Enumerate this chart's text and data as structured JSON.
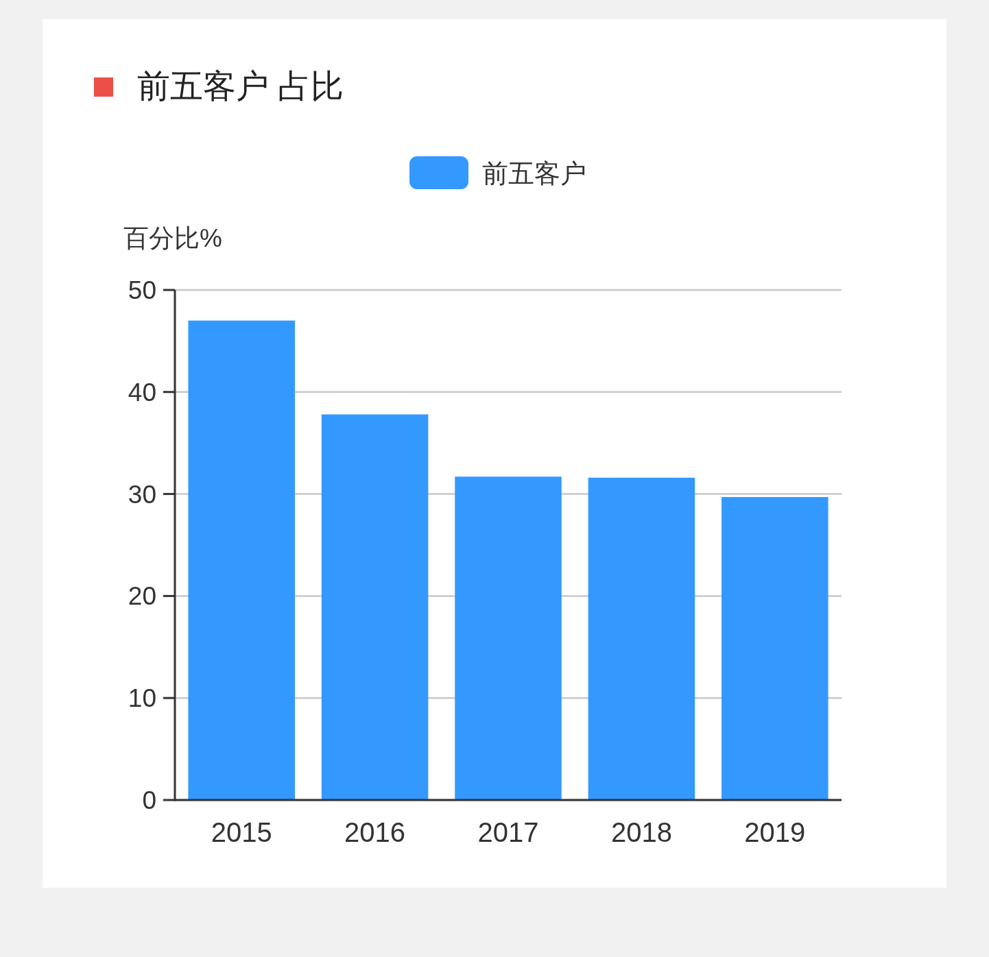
{
  "chart_data": {
    "type": "bar",
    "title": "前五客户 占比",
    "ylabel": "百分比%",
    "categories": [
      "2015",
      "2016",
      "2017",
      "2018",
      "2019"
    ],
    "series": [
      {
        "name": "前五客户",
        "color": "#3399ff",
        "values": [
          47.0,
          37.8,
          31.7,
          31.6,
          29.7
        ]
      }
    ],
    "ylim": [
      0,
      50
    ],
    "yticks": [
      0,
      10,
      20,
      30,
      40,
      50
    ],
    "grid": "y",
    "legend": "top"
  }
}
